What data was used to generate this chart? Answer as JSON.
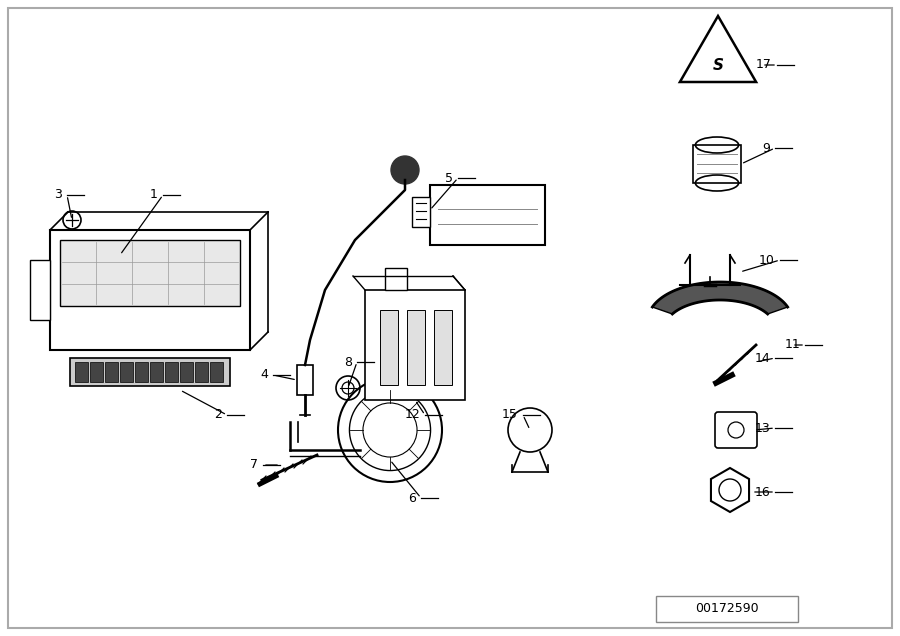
{
  "bg_color": "#ffffff",
  "border_color": "#cccccc",
  "line_color": "#000000",
  "part_number_box": "00172590"
}
